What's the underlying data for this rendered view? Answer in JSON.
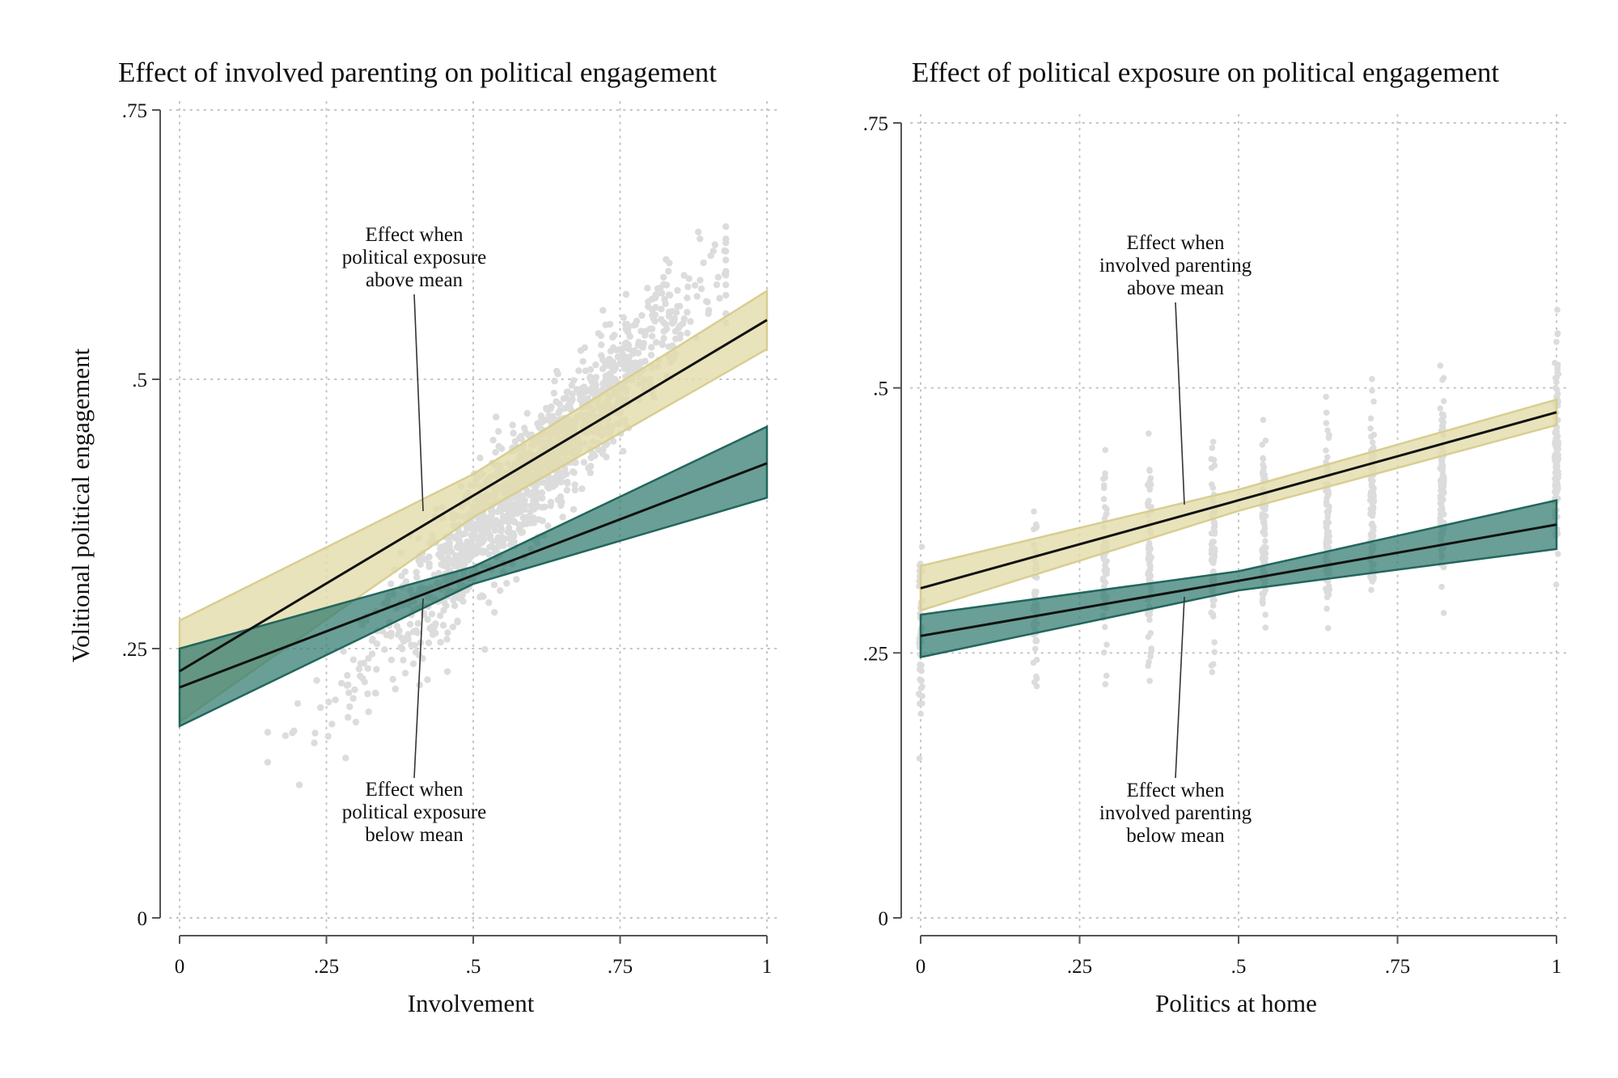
{
  "colors": {
    "above_fill": "#e3dcaa",
    "above_edge": "#d8ce92",
    "below_fill": "#2f7a6d",
    "below_edge": "#22665b",
    "scatter": "#dcdcdc",
    "line": "#111111",
    "grid": "#c4c4c4",
    "axis": "#555555"
  },
  "chart_data": [
    {
      "type": "line",
      "title": "Effect of involved parenting on political engagement",
      "xlabel": "Involvement",
      "ylabel": "Volitional political engagement",
      "xlim": [
        0,
        1
      ],
      "ylim": [
        0,
        0.75
      ],
      "xticks": [
        0,
        0.25,
        0.5,
        0.75,
        1
      ],
      "xtick_labels": [
        "0",
        ".25",
        ".5",
        ".75",
        "1"
      ],
      "yticks": [
        0,
        0.25,
        0.5,
        0.75
      ],
      "ytick_labels": [
        "0",
        ".25",
        ".5",
        ".75"
      ],
      "grid": true,
      "series": [
        {
          "key": "above",
          "x": [
            0,
            0.5,
            1
          ],
          "y": [
            0.229,
            0.392,
            0.555
          ],
          "ci_low": [
            0.182,
            0.372,
            0.528
          ],
          "ci_high": [
            0.276,
            0.412,
            0.582
          ]
        },
        {
          "key": "below",
          "x": [
            0,
            0.5,
            1
          ],
          "y": [
            0.214,
            0.318,
            0.422
          ],
          "ci_low": [
            0.178,
            0.31,
            0.39
          ],
          "ci_high": [
            0.25,
            0.326,
            0.456
          ]
        }
      ],
      "annotations": [
        {
          "lines": [
            "Effect when",
            "political exposure",
            "above mean"
          ],
          "target": "above"
        },
        {
          "lines": [
            "Effect when",
            "political exposure",
            "below mean"
          ],
          "target": "below"
        }
      ]
    },
    {
      "type": "line",
      "title": "Effect of political exposure on political engagement",
      "xlabel": "Politics at home",
      "ylabel": "",
      "xlim": [
        0,
        1
      ],
      "ylim": [
        0,
        0.75
      ],
      "xticks": [
        0,
        0.25,
        0.5,
        0.75,
        1
      ],
      "xtick_labels": [
        "0",
        ".25",
        ".5",
        ".75",
        "1"
      ],
      "yticks": [
        0,
        0.25,
        0.5,
        0.75
      ],
      "ytick_labels": [
        "0",
        ".25",
        ".5",
        ".75"
      ],
      "grid": true,
      "series": [
        {
          "key": "above",
          "x": [
            0,
            0.5,
            1
          ],
          "y": [
            0.311,
            0.394,
            0.477
          ],
          "ci_low": [
            0.29,
            0.384,
            0.465
          ],
          "ci_high": [
            0.332,
            0.404,
            0.489
          ]
        },
        {
          "key": "below",
          "x": [
            0,
            0.5,
            1
          ],
          "y": [
            0.266,
            0.318,
            0.371
          ],
          "ci_low": [
            0.246,
            0.309,
            0.348
          ],
          "ci_high": [
            0.286,
            0.327,
            0.394
          ]
        }
      ],
      "annotations": [
        {
          "lines": [
            "Effect when",
            "involved parenting",
            "above mean"
          ],
          "target": "above"
        },
        {
          "lines": [
            "Effect when",
            "involved parenting",
            "below mean"
          ],
          "target": "below"
        }
      ]
    }
  ]
}
